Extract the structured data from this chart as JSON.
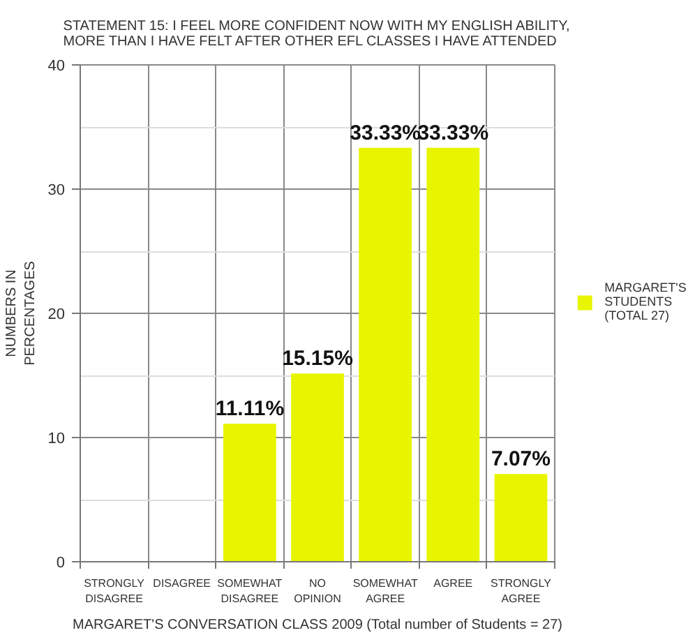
{
  "chart_data": {
    "type": "bar",
    "title": "STATEMENT 15: I FEEL MORE CONFIDENT NOW WITH MY ENGLISH ABILITY,\nMORE THAN I HAVE FELT AFTER OTHER EFL CLASSES I HAVE ATTENDED",
    "xlabel": "MARGARET'S CONVERSATION CLASS 2009 (Total number of Students = 27)",
    "ylabel": "NUMBERS IN\nPERCENTAGES",
    "categories": [
      "STRONGLY\nDISAGREE",
      "DISAGREE",
      "SOMEWHAT\nDISAGREE",
      "NO\nOPINION",
      "SOMEWHAT\nAGREE",
      "AGREE",
      "STRONGLY\nAGREE"
    ],
    "series": [
      {
        "name": "MARGARET'S\nSTUDENTS\n(TOTAL 27)",
        "color": "#e8f500",
        "values": [
          0,
          0,
          11.11,
          15.15,
          33.33,
          33.33,
          7.07
        ],
        "value_labels": [
          null,
          null,
          "11.11%",
          "15.15%",
          "33.33%",
          "33.33%",
          "7.07%"
        ]
      }
    ],
    "ylim": [
      0,
      40
    ],
    "yticks": [
      0,
      {
        "value": 5,
        "label": null
      },
      10,
      {
        "value": 15,
        "label": null
      },
      20,
      {
        "value": 25,
        "label": null
      },
      30,
      {
        "value": 35,
        "label": null
      },
      40
    ],
    "grid": true,
    "legend": "right"
  }
}
